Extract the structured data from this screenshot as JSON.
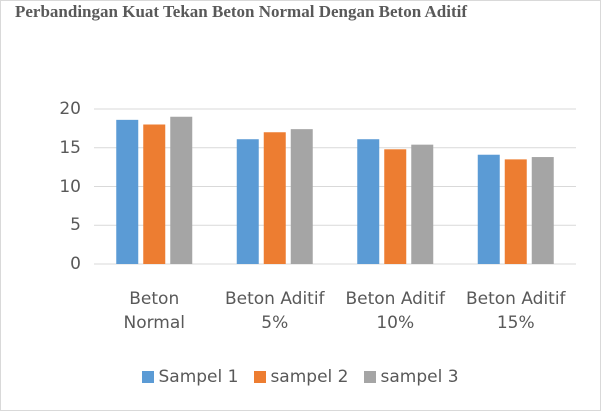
{
  "chart_data": {
    "type": "bar",
    "title": "Perbandingan Kuat Tekan Beton Normal Dengan Beton Aditif",
    "categories": [
      "Beton\nNormal",
      "Beton Aditif\n5%",
      "Beton Aditif\n10%",
      "Beton Aditif\n15%"
    ],
    "series": [
      {
        "name": "Sampel 1",
        "color": "#5b9bd5",
        "values": [
          18.6,
          16.1,
          16.1,
          14.1
        ]
      },
      {
        "name": "sampel 2",
        "color": "#ed7d31",
        "values": [
          18,
          17,
          14.8,
          13.5
        ]
      },
      {
        "name": "sampel 3",
        "color": "#a5a5a5",
        "values": [
          19,
          17.4,
          15.4,
          13.8
        ]
      }
    ],
    "ylim": [
      0,
      20
    ],
    "yticks": [
      0,
      5,
      10,
      15,
      20
    ],
    "grid": true,
    "legend": "bottom"
  }
}
